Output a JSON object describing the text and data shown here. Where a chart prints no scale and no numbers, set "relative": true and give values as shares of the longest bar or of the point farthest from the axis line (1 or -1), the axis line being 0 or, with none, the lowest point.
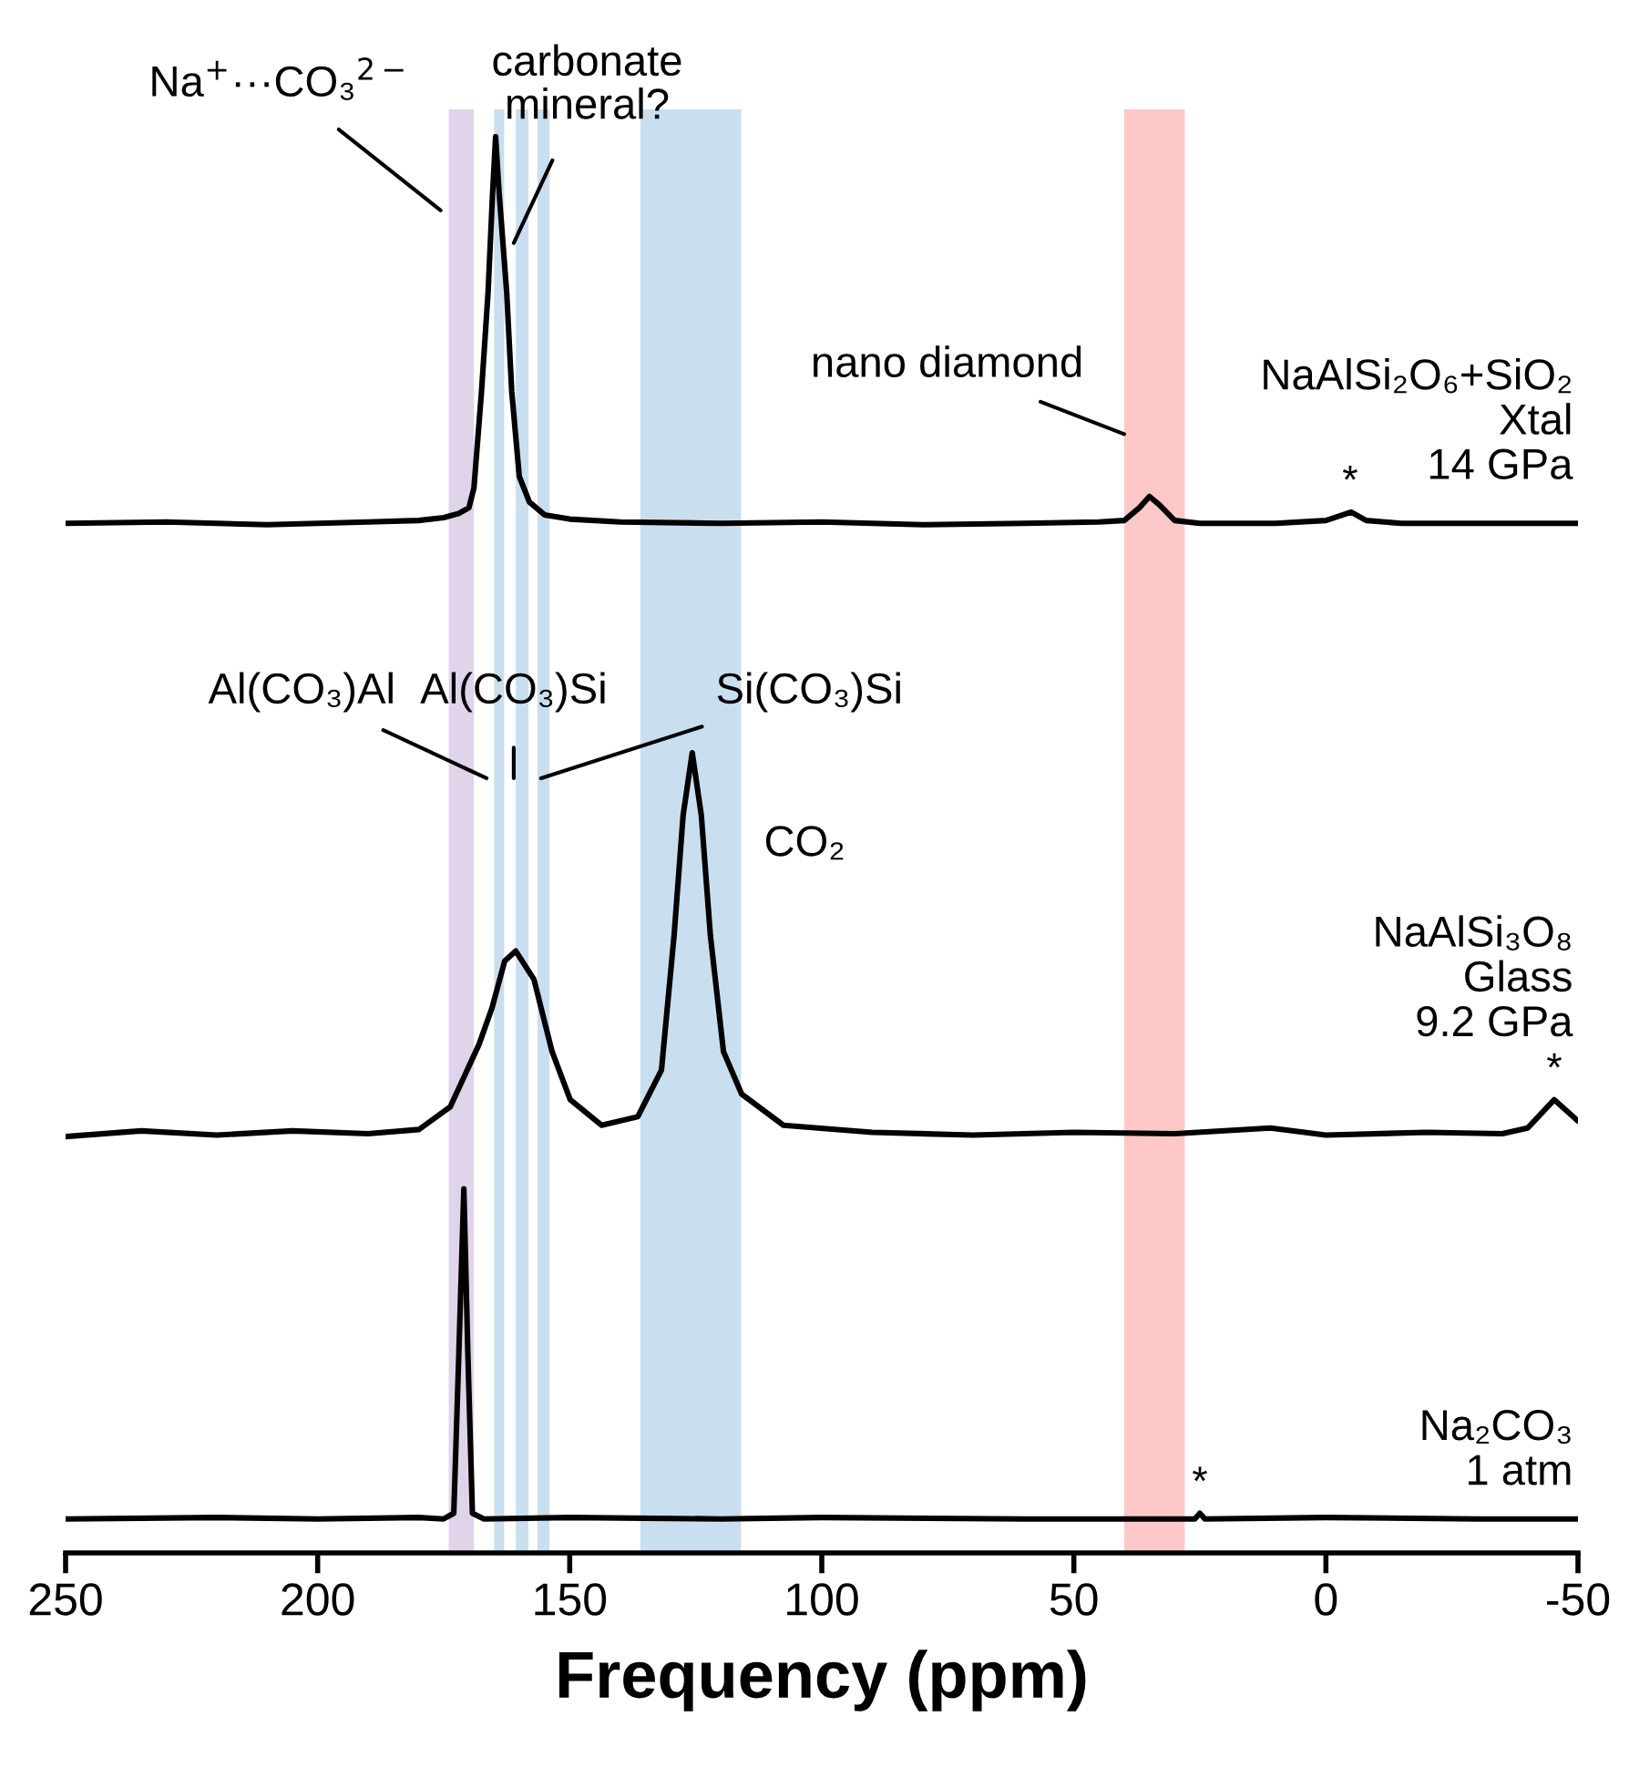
{
  "chart_data": {
    "type": "line",
    "relative": true,
    "xlabel": "Frequency (ppm)",
    "xlim": [
      250,
      -50
    ],
    "xticks": [
      250,
      200,
      150,
      100,
      50,
      0,
      -50
    ],
    "tick_labels": "x",
    "grid": false,
    "series": [
      {
        "name": "NaAlSi₂O₆+SiO₂\nXtal\n14 GPa",
        "color": "#000000",
        "x": [
          250,
          230,
          210,
          190,
          180,
          175,
          172,
          170,
          169,
          167.5,
          166.2,
          165.3,
          164.7,
          164,
          162.5,
          161.5,
          160,
          158,
          155,
          150,
          140,
          120,
          100,
          80,
          60,
          45,
          40,
          37,
          35,
          33,
          30,
          25,
          10,
          0,
          -5,
          -8,
          -15,
          -30,
          -50
        ],
        "values": [
          0.727,
          0.728,
          0.726,
          0.728,
          0.729,
          0.731,
          0.734,
          0.738,
          0.752,
          0.82,
          0.89,
          0.96,
          1.0,
          0.96,
          0.89,
          0.82,
          0.76,
          0.742,
          0.733,
          0.73,
          0.728,
          0.727,
          0.728,
          0.726,
          0.727,
          0.728,
          0.729,
          0.738,
          0.746,
          0.74,
          0.729,
          0.727,
          0.727,
          0.729,
          0.735,
          0.729,
          0.727,
          0.727,
          0.727
        ]
      },
      {
        "name": "NaAlSi₃O₈\nGlass\n9.2 GPa",
        "color": "#000000",
        "x": [
          250,
          235,
          220,
          205,
          190,
          179.9,
          173.7,
          168,
          165.4,
          162.9,
          160.7,
          157.1,
          153.5,
          149.9,
          143.7,
          136.5,
          131.8,
          129.3,
          127.5,
          125.7,
          123.9,
          122.1,
          119.5,
          115.9,
          107.6,
          90,
          70,
          50,
          30,
          11,
          0,
          -20,
          -35,
          -40,
          -45.3,
          -50
        ],
        "values": [
          0.294,
          0.298,
          0.295,
          0.298,
          0.296,
          0.299,
          0.315,
          0.359,
          0.385,
          0.418,
          0.425,
          0.405,
          0.354,
          0.32,
          0.302,
          0.308,
          0.341,
          0.436,
          0.521,
          0.565,
          0.521,
          0.436,
          0.354,
          0.324,
          0.302,
          0.297,
          0.295,
          0.297,
          0.296,
          0.3,
          0.295,
          0.297,
          0.296,
          0.3,
          0.32,
          0.305
        ]
      },
      {
        "name": "Na₂CO₃\n1 atm",
        "color": "#000000",
        "x": [
          250,
          220,
          200,
          180,
          175,
          173,
          172,
          171,
          170.2,
          169.3,
          167,
          150,
          120,
          100,
          60,
          30,
          26,
          25,
          24,
          0,
          -30,
          -50
        ],
        "values": [
          0.024,
          0.025,
          0.024,
          0.025,
          0.024,
          0.028,
          0.14,
          0.257,
          0.14,
          0.028,
          0.024,
          0.025,
          0.024,
          0.025,
          0.024,
          0.024,
          0.024,
          0.028,
          0.024,
          0.025,
          0.024,
          0.024
        ]
      }
    ],
    "bands": [
      {
        "axis": "x",
        "from": 174,
        "to": 169,
        "color": "#e0d4ea"
      },
      {
        "axis": "x",
        "from": 165,
        "to": 163,
        "color": "#c9dff0"
      },
      {
        "axis": "x",
        "from": 160.7,
        "to": 158.2,
        "color": "#c9dff0"
      },
      {
        "axis": "x",
        "from": 156.4,
        "to": 154,
        "color": "#c9dff0"
      },
      {
        "axis": "x",
        "from": 136,
        "to": 116,
        "color": "#c9dff0",
        "label": "CO₂"
      },
      {
        "axis": "x",
        "from": 40,
        "to": 28,
        "color": "#fec8c8"
      }
    ],
    "annotations": [
      {
        "text": "Na$^{+}$···CO₃$^{2−}$",
        "x": 175.6,
        "y": 0.948
      },
      {
        "text": "carbonate\nmineral?",
        "x": 161.1,
        "y": 0.925
      },
      {
        "text": "nano diamond",
        "x": 40,
        "y": 0.79
      },
      {
        "text": "Al(CO₃)Al",
        "x": 166.5,
        "y": 0.547
      },
      {
        "text": "Al(CO₃)Si",
        "x": 161.1,
        "y": 0.547
      },
      {
        "text": "Si(CO₃)Si",
        "x": 155.7,
        "y": 0.547
      },
      {
        "text": "*",
        "x": -4.8,
        "y": 0.735
      },
      {
        "text": "*",
        "x": -45.3,
        "y": 0.32
      },
      {
        "text": "*",
        "x": 25,
        "y": 0.028
      }
    ]
  }
}
